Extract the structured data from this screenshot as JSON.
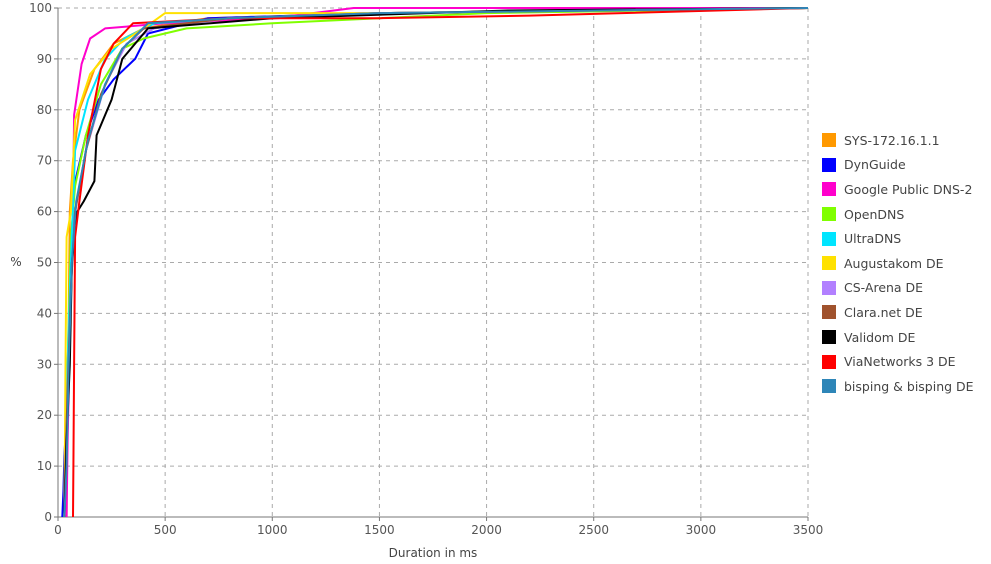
{
  "chart_data": {
    "type": "line",
    "title": "",
    "xlabel": "Duration in ms",
    "ylabel": "%",
    "xlim": [
      0,
      3500
    ],
    "ylim": [
      0,
      100
    ],
    "xticks": [
      0,
      500,
      1000,
      1500,
      2000,
      2500,
      3000,
      3500
    ],
    "yticks": [
      0,
      10,
      20,
      30,
      40,
      50,
      60,
      70,
      80,
      90,
      100
    ],
    "grid": true,
    "legend_position": "right",
    "series": [
      {
        "name": "SYS-172.16.1.1",
        "color": "#ff9900",
        "points": [
          [
            40,
            0
          ],
          [
            42,
            20
          ],
          [
            50,
            40
          ],
          [
            55,
            60
          ],
          [
            70,
            70
          ],
          [
            100,
            80
          ],
          [
            170,
            88
          ],
          [
            260,
            93
          ],
          [
            400,
            96
          ],
          [
            700,
            98
          ],
          [
            1500,
            99
          ],
          [
            3500,
            100
          ]
        ]
      },
      {
        "name": "DynGuide",
        "color": "#0000ff",
        "points": [
          [
            20,
            0
          ],
          [
            25,
            5
          ],
          [
            30,
            12
          ],
          [
            40,
            20
          ],
          [
            55,
            40
          ],
          [
            75,
            65
          ],
          [
            130,
            75
          ],
          [
            190,
            82
          ],
          [
            260,
            86
          ],
          [
            360,
            90
          ],
          [
            420,
            95
          ],
          [
            700,
            98
          ],
          [
            1500,
            99
          ],
          [
            3500,
            100
          ]
        ]
      },
      {
        "name": "Google Public DNS-2",
        "color": "#ff00cc",
        "points": [
          [
            40,
            0
          ],
          [
            45,
            15
          ],
          [
            55,
            35
          ],
          [
            70,
            60
          ],
          [
            75,
            79
          ],
          [
            110,
            89
          ],
          [
            150,
            94
          ],
          [
            220,
            96
          ],
          [
            500,
            97
          ],
          [
            1000,
            98
          ],
          [
            1380,
            100
          ],
          [
            3500,
            100
          ]
        ]
      },
      {
        "name": "OpenDNS",
        "color": "#80ff00",
        "points": [
          [
            30,
            0
          ],
          [
            35,
            15
          ],
          [
            45,
            30
          ],
          [
            60,
            55
          ],
          [
            80,
            65
          ],
          [
            130,
            75
          ],
          [
            200,
            85
          ],
          [
            300,
            92
          ],
          [
            400,
            94
          ],
          [
            600,
            96
          ],
          [
            1000,
            97
          ],
          [
            2000,
            99
          ],
          [
            3500,
            100
          ]
        ]
      },
      {
        "name": "UltraDNS",
        "color": "#00e5ff",
        "points": [
          [
            30,
            0
          ],
          [
            35,
            15
          ],
          [
            45,
            30
          ],
          [
            60,
            50
          ],
          [
            80,
            72
          ],
          [
            140,
            82
          ],
          [
            220,
            90
          ],
          [
            310,
            94
          ],
          [
            450,
            97
          ],
          [
            800,
            98
          ],
          [
            1500,
            99
          ],
          [
            3500,
            100
          ]
        ]
      },
      {
        "name": "Augustakom DE",
        "color": "#ffe100",
        "points": [
          [
            30,
            0
          ],
          [
            35,
            30
          ],
          [
            40,
            55
          ],
          [
            60,
            60
          ],
          [
            80,
            78
          ],
          [
            150,
            87
          ],
          [
            250,
            92
          ],
          [
            400,
            96
          ],
          [
            500,
            99
          ],
          [
            800,
            99
          ],
          [
            1500,
            99
          ],
          [
            3500,
            100
          ]
        ]
      },
      {
        "name": "CS-Arena DE",
        "color": "#b280ff",
        "points": [
          [
            30,
            0
          ],
          [
            35,
            10
          ],
          [
            45,
            25
          ],
          [
            60,
            45
          ],
          [
            80,
            60
          ],
          [
            130,
            72
          ],
          [
            220,
            85
          ],
          [
            320,
            93
          ],
          [
            450,
            96
          ],
          [
            800,
            98
          ],
          [
            1500,
            99
          ],
          [
            3500,
            100
          ]
        ]
      },
      {
        "name": "Clara.net DE",
        "color": "#a0522d",
        "points": [
          [
            30,
            0
          ],
          [
            35,
            10
          ],
          [
            45,
            25
          ],
          [
            60,
            45
          ],
          [
            80,
            60
          ],
          [
            130,
            72
          ],
          [
            200,
            83
          ],
          [
            300,
            92
          ],
          [
            400,
            96
          ],
          [
            800,
            98
          ],
          [
            1500,
            99
          ],
          [
            3500,
            100
          ]
        ]
      },
      {
        "name": "Validom DE",
        "color": "#000000",
        "points": [
          [
            30,
            0
          ],
          [
            40,
            15
          ],
          [
            55,
            30
          ],
          [
            65,
            50
          ],
          [
            90,
            60
          ],
          [
            120,
            62
          ],
          [
            170,
            66
          ],
          [
            180,
            75
          ],
          [
            250,
            82
          ],
          [
            300,
            90
          ],
          [
            420,
            96
          ],
          [
            1000,
            98
          ],
          [
            2100,
            99.5
          ],
          [
            3500,
            100
          ]
        ]
      },
      {
        "name": "ViaNetworks 3 DE",
        "color": "#ff0000",
        "points": [
          [
            70,
            0
          ],
          [
            72,
            10
          ],
          [
            75,
            30
          ],
          [
            80,
            55
          ],
          [
            100,
            62
          ],
          [
            140,
            75
          ],
          [
            200,
            88
          ],
          [
            260,
            93
          ],
          [
            350,
            97
          ],
          [
            800,
            98
          ],
          [
            1500,
            98
          ],
          [
            2200,
            98.5
          ],
          [
            3500,
            100
          ]
        ]
      },
      {
        "name": "bisping & bisping DE",
        "color": "#2e86b8",
        "points": [
          [
            30,
            0
          ],
          [
            40,
            10
          ],
          [
            50,
            30
          ],
          [
            65,
            50
          ],
          [
            85,
            62
          ],
          [
            140,
            74
          ],
          [
            220,
            85
          ],
          [
            300,
            92
          ],
          [
            420,
            97
          ],
          [
            800,
            98
          ],
          [
            1500,
            99
          ],
          [
            3500,
            100
          ]
        ]
      }
    ]
  }
}
